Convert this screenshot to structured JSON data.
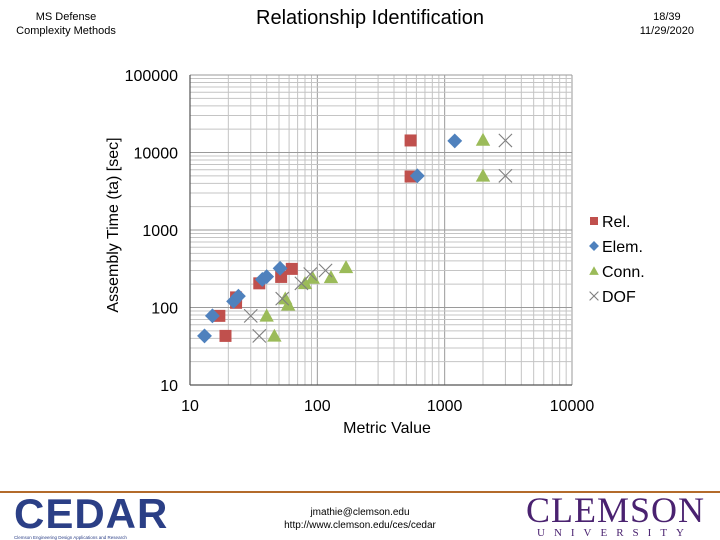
{
  "header": {
    "org_line": "MS Defense\nComplexity Methods",
    "title": "Relationship Identification",
    "slide_number": "18/39",
    "date": "11/29/2020"
  },
  "chart_data": {
    "type": "scatter",
    "title": "",
    "xlabel": "Metric Value",
    "ylabel": "Assembly Time (ta) [sec]",
    "x_scale": "log",
    "y_scale": "log",
    "xlim": [
      10,
      10000
    ],
    "ylim": [
      10,
      100000
    ],
    "x_ticks": [
      "10",
      "100",
      "1000",
      "10000"
    ],
    "y_ticks": [
      "10",
      "100",
      "1000",
      "10000",
      "100000"
    ],
    "grid": true,
    "legend_position": "right",
    "series": [
      {
        "name": "Rel.",
        "marker": "square",
        "color": "#c0504d",
        "points": [
          [
            17,
            78
          ],
          [
            19,
            43
          ],
          [
            23,
            115
          ],
          [
            23,
            135
          ],
          [
            35,
            205
          ],
          [
            52,
            248
          ],
          [
            63,
            315
          ],
          [
            540,
            4900
          ],
          [
            540,
            14300
          ]
        ]
      },
      {
        "name": "Elem.",
        "marker": "diamond",
        "color": "#4f81bd",
        "points": [
          [
            13,
            43
          ],
          [
            15,
            78
          ],
          [
            22,
            120
          ],
          [
            24,
            140
          ],
          [
            37,
            230
          ],
          [
            40,
            250
          ],
          [
            51,
            320
          ],
          [
            610,
            5000
          ],
          [
            1200,
            14100
          ]
        ]
      },
      {
        "name": "Conn.",
        "marker": "triangle",
        "color": "#9bbb59",
        "points": [
          [
            40,
            78
          ],
          [
            46,
            43
          ],
          [
            56,
            130
          ],
          [
            59,
            108
          ],
          [
            80,
            205
          ],
          [
            92,
            240
          ],
          [
            128,
            245
          ],
          [
            168,
            330
          ],
          [
            2000,
            5000
          ],
          [
            2000,
            14500
          ]
        ]
      },
      {
        "name": "DOF",
        "marker": "x",
        "color": "#7f7f7f",
        "points": [
          [
            30,
            78
          ],
          [
            35,
            43
          ],
          [
            53,
            130
          ],
          [
            75,
            205
          ],
          [
            88,
            270
          ],
          [
            116,
            300
          ],
          [
            3000,
            5000
          ],
          [
            3000,
            14300
          ]
        ]
      }
    ]
  },
  "footer": {
    "logo_left_text": "CEDAR",
    "logo_left_tagline": "Clemson Engineering Design Applications and Research",
    "email": "jmathie@clemson.edu",
    "url": "http://www.clemson.edu/ces/cedar",
    "logo_right_text": "CLEMSON",
    "logo_right_sub": "UNIVERSITY"
  }
}
